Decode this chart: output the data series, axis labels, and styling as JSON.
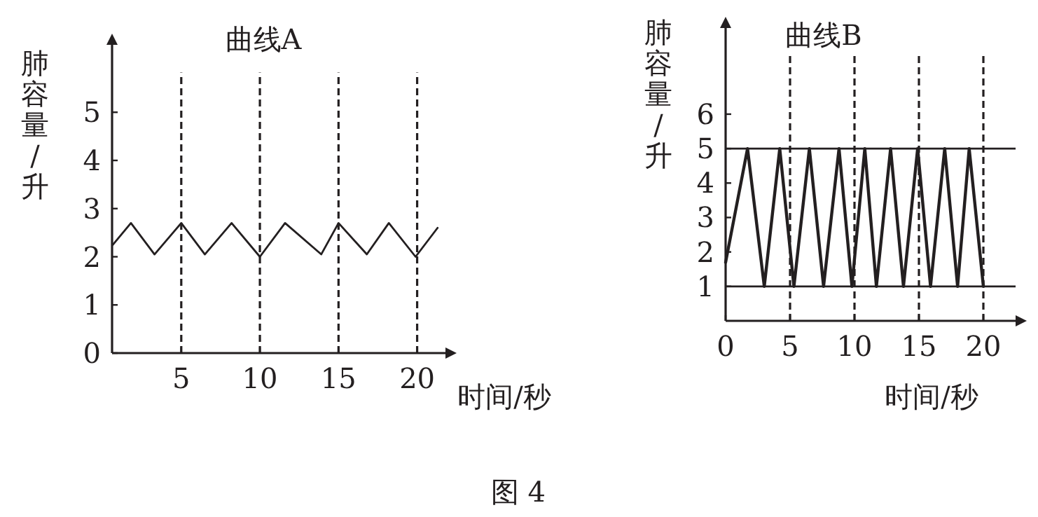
{
  "chart_data": [
    {
      "type": "line",
      "title": "曲线A",
      "xlabel": "时间/秒",
      "ylabel": "肺容量/升",
      "xlim": [
        0.6,
        21.8
      ],
      "ylim": [
        0,
        6.4
      ],
      "xticks": [
        5,
        10,
        15,
        20
      ],
      "yticks": [
        0,
        1,
        2,
        3,
        4,
        5
      ],
      "series": [
        {
          "color": "#231f20",
          "x": [
            0.65,
            1.8,
            3.3,
            5.0,
            6.5,
            8.2,
            10.0,
            11.6,
            13.9,
            15.0,
            16.8,
            18.2,
            19.9,
            21.3
          ],
          "values": [
            2.25,
            2.7,
            2.05,
            2.7,
            2.05,
            2.7,
            2.0,
            2.7,
            2.05,
            2.7,
            2.05,
            2.7,
            2.0,
            2.6
          ]
        }
      ],
      "ref_lines": [
        {
          "axis": "x",
          "value": 5,
          "line_style": "dashed"
        },
        {
          "axis": "x",
          "value": 10,
          "line_style": "dashed"
        },
        {
          "axis": "x",
          "value": 15,
          "line_style": "dashed"
        },
        {
          "axis": "x",
          "value": 20,
          "line_style": "dashed"
        }
      ],
      "annotations": [
        "图 4"
      ]
    },
    {
      "type": "line",
      "title": "曲线B",
      "xlabel": "时间/秒",
      "ylabel": "肺容量/升",
      "xlim": [
        0,
        22.5
      ],
      "ylim": [
        0,
        8.5
      ],
      "xticks": [
        0,
        5,
        10,
        15,
        20
      ],
      "yticks": [
        1,
        2,
        3,
        4,
        5,
        6
      ],
      "series": [
        {
          "color": "#231f20",
          "x": [
            0,
            1.7,
            3.0,
            4.2,
            5.3,
            6.5,
            7.6,
            8.8,
            9.8,
            10.8,
            11.7,
            12.8,
            13.8,
            14.9,
            15.9,
            17.0,
            18.0,
            18.9,
            20.0
          ],
          "values": [
            1.7,
            5,
            1,
            5,
            1,
            5,
            1,
            5,
            1,
            5,
            1,
            5,
            1,
            5,
            1,
            5,
            1,
            5,
            1
          ]
        }
      ],
      "ref_lines": [
        {
          "axis": "y",
          "value": 5,
          "line_style": "solid"
        },
        {
          "axis": "y",
          "value": 1,
          "line_style": "solid"
        },
        {
          "axis": "x",
          "value": 5,
          "line_style": "dashed"
        },
        {
          "axis": "x",
          "value": 10,
          "line_style": "dashed"
        },
        {
          "axis": "x",
          "value": 15,
          "line_style": "dashed"
        },
        {
          "axis": "x",
          "value": 20,
          "line_style": "dashed"
        }
      ]
    }
  ]
}
